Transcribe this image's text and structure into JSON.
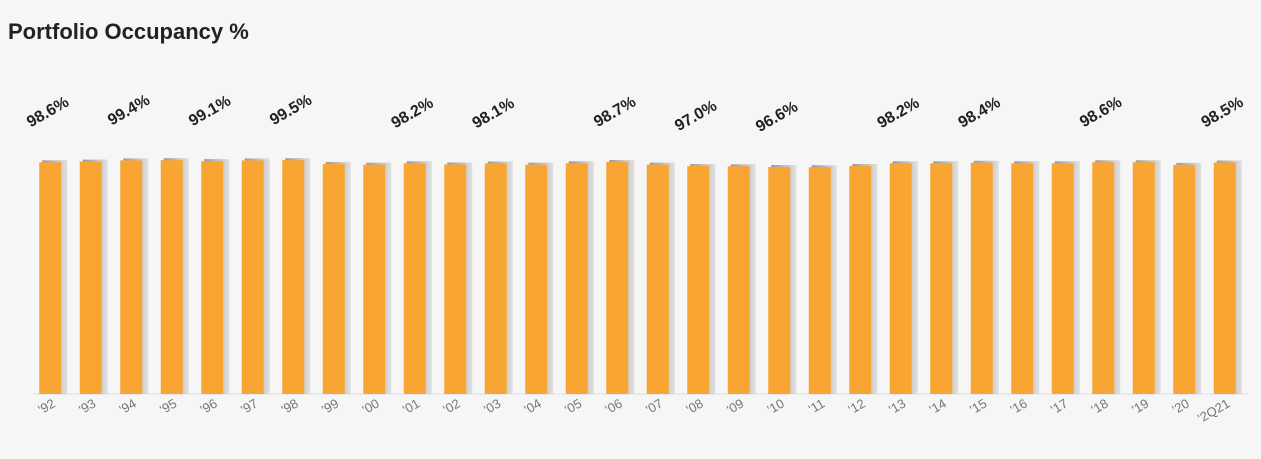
{
  "chart_data": {
    "type": "bar",
    "title": "Portfolio Occupancy %",
    "categories": [
      "'92",
      "'93",
      "'94",
      "'95",
      "'96",
      "'97",
      "'98",
      "'99",
      "'00",
      "'01",
      "'02",
      "'03",
      "'04",
      "'05",
      "'06",
      "'07",
      "'08",
      "'09",
      "'10",
      "'11",
      "'12",
      "'13",
      "'14",
      "'15",
      "'16",
      "'17",
      "'18",
      "'19",
      "'20",
      "'2Q21"
    ],
    "values": [
      98.6,
      98.9,
      99.4,
      99.5,
      99.1,
      99.4,
      99.5,
      97.9,
      97.6,
      98.2,
      97.7,
      98.1,
      97.6,
      98.2,
      98.7,
      97.6,
      97.0,
      96.9,
      96.6,
      96.5,
      97.0,
      98.2,
      98.2,
      98.4,
      98.2,
      98.2,
      98.6,
      98.6,
      97.5,
      98.5
    ],
    "value_labels": [
      "98.6%",
      null,
      "99.4%",
      null,
      "99.1%",
      null,
      "99.5%",
      null,
      null,
      "98.2%",
      null,
      "98.1%",
      null,
      null,
      "98.7%",
      null,
      "97.0%",
      null,
      "96.6%",
      null,
      null,
      "98.2%",
      null,
      "98.4%",
      null,
      null,
      "98.6%",
      null,
      null,
      "98.5%"
    ],
    "color": "#f9a533",
    "ylim": [
      0,
      100
    ]
  }
}
